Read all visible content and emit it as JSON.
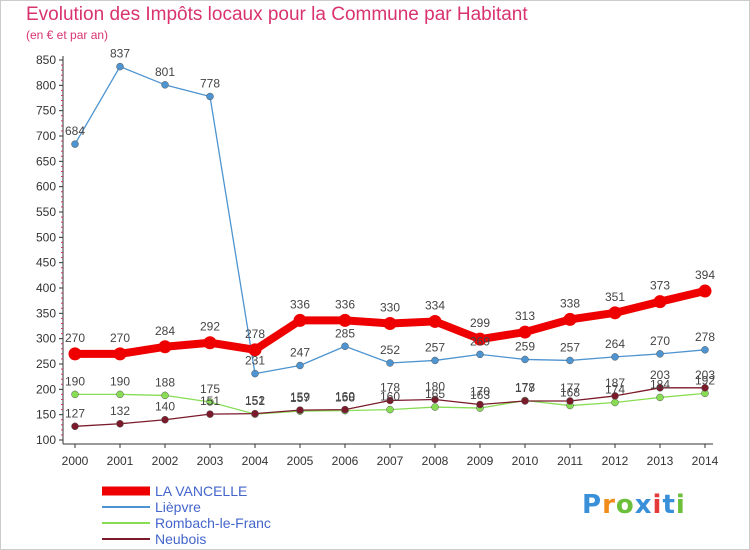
{
  "title": "Evolution des Impôts locaux pour la Commune par Habitant",
  "subtitle": "(en € et par an)",
  "logo": {
    "text": "Proxiti",
    "colors": [
      "#3a8fd9",
      "#f08c1a",
      "#6cbf3a",
      "#3a8fd9",
      "#e53a3a",
      "#3a8fd9",
      "#6cbf3a"
    ]
  },
  "chart_data": {
    "type": "line",
    "x": [
      "2000",
      "2001",
      "2002",
      "2003",
      "2004",
      "2005",
      "2006",
      "2007",
      "2008",
      "2009",
      "2010",
      "2011",
      "2012",
      "2013",
      "2014"
    ],
    "ylim": [
      100,
      850
    ],
    "yticks": [
      100,
      150,
      200,
      250,
      300,
      350,
      400,
      450,
      500,
      550,
      600,
      650,
      700,
      750,
      800,
      850
    ],
    "grid": false,
    "legend_position": "bottom-left",
    "series": [
      {
        "name": "LA VANCELLE",
        "color": "#ee0000",
        "values": [
          270,
          270,
          284,
          292,
          278,
          336,
          336,
          330,
          334,
          299,
          313,
          338,
          351,
          373,
          394
        ]
      },
      {
        "name": "Lièpvre",
        "color": "#4d94d0",
        "values": [
          684,
          837,
          801,
          778,
          231,
          247,
          285,
          252,
          257,
          269,
          259,
          257,
          264,
          270,
          278
        ]
      },
      {
        "name": "Rombach-le-Franc",
        "color": "#88dd55",
        "values": [
          190,
          190,
          188,
          175,
          151,
          157,
          158,
          160,
          165,
          163,
          178,
          168,
          174,
          184,
          192
        ]
      },
      {
        "name": "Neubois",
        "color": "#7a1a2a",
        "values": [
          127,
          132,
          140,
          151,
          152,
          159,
          160,
          178,
          180,
          170,
          177,
          177,
          187,
          203,
          203
        ]
      }
    ]
  }
}
